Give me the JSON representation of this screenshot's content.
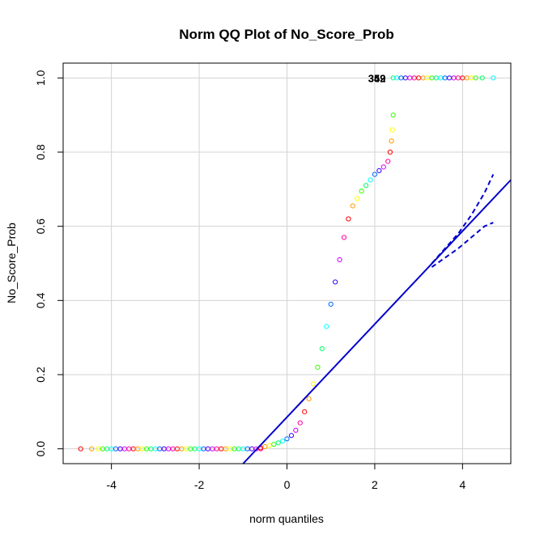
{
  "chart_data": {
    "type": "scatter",
    "title": "Norm QQ Plot of No_Score_Prob",
    "xlabel": "norm quantiles",
    "ylabel": "No_Score_Prob",
    "xlim": [
      -5.1,
      5.1
    ],
    "ylim": [
      -0.04,
      1.04
    ],
    "x_ticks": [
      -4,
      -2,
      0,
      2,
      4
    ],
    "x_tick_labels": [
      "-4",
      "-2",
      "0",
      "2",
      "4"
    ],
    "y_ticks": [
      0,
      0.2,
      0.4,
      0.6,
      0.8,
      1.0
    ],
    "y_tick_labels": [
      "0.0",
      "0.2",
      "0.4",
      "0.6",
      "0.8",
      "1.0"
    ],
    "grid": true,
    "point_colors": [
      "#ff0000",
      "#ff9900",
      "#ffff00",
      "#33ff00",
      "#00ff66",
      "#00ffff",
      "#0066ff",
      "#3300ff",
      "#cc00ff",
      "#ff0099"
    ],
    "line_color": "#0000cc",
    "points_zero": {
      "x": [
        -4.7,
        -4.45,
        -4.3,
        -4.2,
        -4.1,
        -4.0,
        -3.9,
        -3.8,
        -3.7,
        -3.6,
        -3.5,
        -3.4,
        -3.3,
        -3.2,
        -3.1,
        -3.0,
        -2.9,
        -2.8,
        -2.7,
        -2.6,
        -2.5,
        -2.4,
        -2.3,
        -2.2,
        -2.1,
        -2.0,
        -1.9,
        -1.8,
        -1.7,
        -1.6,
        -1.5,
        -1.4,
        -1.3,
        -1.2,
        -1.1,
        -1.0,
        -0.9,
        -0.8,
        -0.7,
        -0.6
      ],
      "y": 0
    },
    "points_one": {
      "x": [
        2.42,
        2.5,
        2.6,
        2.7,
        2.8,
        2.9,
        3.0,
        3.1,
        3.2,
        3.3,
        3.4,
        3.5,
        3.6,
        3.7,
        3.8,
        3.9,
        4.0,
        4.1,
        4.2,
        4.3,
        4.45,
        4.7
      ],
      "y": 1.0
    },
    "curve": {
      "x": [
        -0.6,
        -0.5,
        -0.4,
        -0.3,
        -0.2,
        -0.1,
        0.0,
        0.1,
        0.2,
        0.3,
        0.4,
        0.5,
        0.6,
        0.7,
        0.8,
        0.9,
        1.0,
        1.1,
        1.2,
        1.3,
        1.4,
        1.5,
        1.6,
        1.7,
        1.8,
        1.9,
        2.0,
        2.1,
        2.2,
        2.3,
        2.35,
        2.38,
        2.4,
        2.42
      ],
      "y": [
        0.003,
        0.006,
        0.009,
        0.012,
        0.016,
        0.021,
        0.027,
        0.036,
        0.05,
        0.07,
        0.1,
        0.135,
        0.175,
        0.22,
        0.27,
        0.33,
        0.39,
        0.45,
        0.51,
        0.57,
        0.62,
        0.655,
        0.675,
        0.695,
        0.71,
        0.725,
        0.74,
        0.75,
        0.76,
        0.775,
        0.8,
        0.83,
        0.86,
        0.9
      ]
    },
    "reference_line": {
      "x1": -1.0,
      "y1": -0.04,
      "x2": 5.1,
      "y2": 0.725
    },
    "confidence_band": {
      "x": [
        3.3,
        3.6,
        3.9,
        4.2,
        4.5,
        4.7
      ],
      "upper": [
        0.5,
        0.54,
        0.58,
        0.63,
        0.69,
        0.74
      ],
      "lower": [
        0.49,
        0.515,
        0.54,
        0.57,
        0.6,
        0.61
      ]
    },
    "annotations": [
      {
        "text": "349",
        "x": 2.05,
        "y": 1.0
      },
      {
        "text": "352",
        "x": 2.05,
        "y": 1.0
      }
    ]
  }
}
